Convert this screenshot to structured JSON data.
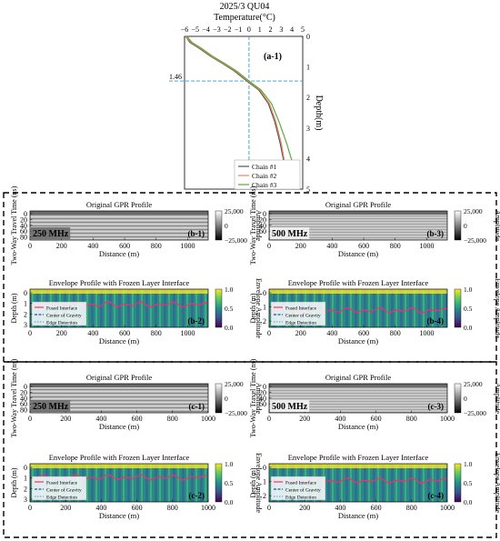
{
  "chart_data": [
    {
      "id": "a-1",
      "type": "line",
      "title": "2025/3 QU04",
      "xlabel": "Temperature(°C)",
      "ylabel": "Depth(m)",
      "xlim": [
        -6,
        5
      ],
      "ylim": [
        0,
        5
      ],
      "xticks": [
        "−6",
        "−5",
        "−4",
        "−3",
        "−2",
        "−1",
        "0",
        "1",
        "2",
        "3",
        "4",
        "5"
      ],
      "yticks": [
        "0",
        "1",
        "2",
        "3",
        "4",
        "5"
      ],
      "panel_label": "(a-1)",
      "marker_label": "1.46",
      "marker_depth": 1.46,
      "marker_temp": 0,
      "legend_position": "bottom-right",
      "series": [
        {
          "name": "Chain #1",
          "color": "#555555",
          "points": [
            [
              -5.9,
              0
            ],
            [
              -5.5,
              0.2
            ],
            [
              -4.6,
              0.4
            ],
            [
              -3.6,
              0.65
            ],
            [
              -2.4,
              0.9
            ],
            [
              -1.3,
              1.15
            ],
            [
              -0.2,
              1.46
            ],
            [
              0.9,
              1.75
            ],
            [
              1.8,
              2.2
            ],
            [
              2.4,
              2.8
            ],
            [
              2.9,
              3.5
            ],
            [
              3.3,
              4.2
            ],
            [
              3.6,
              5
            ]
          ]
        },
        {
          "name": "Chain #2",
          "color": "#e9875a",
          "points": [
            [
              -5.9,
              0
            ],
            [
              -5.4,
              0.2
            ],
            [
              -4.5,
              0.4
            ],
            [
              -3.5,
              0.65
            ],
            [
              -2.3,
              0.9
            ],
            [
              -1.2,
              1.15
            ],
            [
              -0.1,
              1.46
            ],
            [
              1.0,
              1.75
            ],
            [
              1.9,
              2.2
            ],
            [
              2.5,
              2.8
            ],
            [
              3.0,
              3.5
            ],
            [
              3.4,
              4.3
            ],
            [
              3.8,
              5
            ]
          ]
        },
        {
          "name": "Chain #3",
          "color": "#5aaa3c",
          "points": [
            [
              -5.8,
              0
            ],
            [
              -5.3,
              0.2
            ],
            [
              -4.4,
              0.4
            ],
            [
              -3.4,
              0.65
            ],
            [
              -2.2,
              0.9
            ],
            [
              -1.1,
              1.15
            ],
            [
              0.0,
              1.46
            ],
            [
              1.1,
              1.75
            ],
            [
              2.1,
              2.2
            ],
            [
              2.8,
              2.8
            ],
            [
              3.5,
              3.5
            ],
            [
              4.1,
              4.2
            ],
            [
              4.5,
              5
            ]
          ]
        }
      ]
    },
    {
      "id": "b-1",
      "type": "heatmap",
      "title": "Original GPR Profile",
      "xlabel": "Distance (m)",
      "ylabel": "Two-Way Travel Time (ns)",
      "xticks": [
        "0",
        "200",
        "400",
        "600",
        "800",
        "1000"
      ],
      "xlim": [
        0,
        1130
      ],
      "yticks": [
        "0",
        "20",
        "40",
        "60",
        "80"
      ],
      "colorbar_label": "Amplitude",
      "colorbar_ticks": [
        "25,000",
        "0",
        "−25,000"
      ],
      "frequency": "250 MHz",
      "panel_label": "(b-1)"
    },
    {
      "id": "b-3",
      "type": "heatmap",
      "title": "Original GPR Profile",
      "xlabel": "Distance (m)",
      "ylabel": "Two-Way Travel Time (ns)",
      "xticks": [
        "0",
        "200",
        "400",
        "600",
        "800",
        "1000"
      ],
      "xlim": [
        0,
        1130
      ],
      "yticks": [
        "0",
        "20",
        "40",
        "60"
      ],
      "colorbar_label": "Amplitude",
      "colorbar_ticks": [
        "25,000",
        "0",
        "−25,000"
      ],
      "frequency": "500 MHz",
      "panel_label": "(b-3)"
    },
    {
      "id": "b-2",
      "type": "heatmap",
      "title": "Envelope Profile with Frozen Layer Interface",
      "xlabel": "Distance (m)",
      "ylabel": "Depth (m)",
      "xticks": [
        "0",
        "200",
        "400",
        "600",
        "800",
        "1000"
      ],
      "xlim": [
        0,
        1130
      ],
      "yticks": [
        "0",
        "1",
        "2",
        "3"
      ],
      "colorbar_label": "Envelope Amplitude",
      "colorbar_ticks": [
        "1.0",
        "0.5",
        "0.0"
      ],
      "panel_label": "(b-2)",
      "legend": [
        "Fused Interface",
        "Center of Gravity",
        "Edge Detection"
      ],
      "interface_depth_m": 1.45
    },
    {
      "id": "b-4",
      "type": "heatmap",
      "title": "Envelope Profile with Frozen Layer Interface",
      "xlabel": "Distance (m)",
      "ylabel": "Depth (m)",
      "xticks": [
        "0",
        "200",
        "400",
        "600",
        "800",
        "1000"
      ],
      "xlim": [
        0,
        1130
      ],
      "yticks": [
        "0",
        "1",
        "2"
      ],
      "colorbar_label": "Envelope Amplitude",
      "colorbar_ticks": [
        "1.0",
        "0.5",
        "0.0"
      ],
      "panel_label": "(b-4)",
      "legend": [
        "Fused Interface",
        "Center of Gravity",
        "Edge Detection"
      ],
      "interface_depth_m": 1.5
    },
    {
      "id": "c-1",
      "type": "heatmap",
      "title": "Original GPR Profile",
      "xlabel": "Distance (m)",
      "ylabel": "Two-Way Travel Time (ns)",
      "xticks": [
        "0",
        "200",
        "400",
        "600",
        "800",
        "1000"
      ],
      "xlim": [
        0,
        1000
      ],
      "yticks": [
        "0",
        "20",
        "40",
        "60",
        "80"
      ],
      "colorbar_label": "Amplitude",
      "colorbar_ticks": [
        "25,000",
        "0",
        "−25,000"
      ],
      "frequency": "250 MHz",
      "panel_label": "(c-1)"
    },
    {
      "id": "c-3",
      "type": "heatmap",
      "title": "Original GPR Profile",
      "xlabel": "Distance (m)",
      "ylabel": "Two-Way Travel Time (ns)",
      "xticks": [
        "0",
        "200",
        "400",
        "600",
        "800",
        "1000"
      ],
      "xlim": [
        0,
        1000
      ],
      "yticks": [
        "0",
        "20",
        "40",
        "60"
      ],
      "colorbar_label": "Amplitude",
      "colorbar_ticks": [
        "25,000",
        "0",
        "−25,000"
      ],
      "frequency": "500 MHz",
      "panel_label": "(c-3)"
    },
    {
      "id": "c-2",
      "type": "heatmap",
      "title": "Envelope Profile with Frozen Layer Interface",
      "xlabel": "Distance (m)",
      "ylabel": "Depth (m)",
      "xticks": [
        "0",
        "200",
        "400",
        "600",
        "800",
        "1000"
      ],
      "xlim": [
        0,
        1000
      ],
      "yticks": [
        "0",
        "1",
        "2",
        "3"
      ],
      "colorbar_label": "Envelope Amplitude",
      "colorbar_ticks": [
        "1.0",
        "0.5",
        "0.0"
      ],
      "panel_label": "(c-2)",
      "legend": [
        "Fused Interface",
        "Center of Gravity",
        "Edge Detection"
      ],
      "interface_depth_m": 1.3
    },
    {
      "id": "c-4",
      "type": "heatmap",
      "title": "Envelope Profile with Frozen Layer Interface",
      "xlabel": "Distance (m)",
      "ylabel": "Depth (m)",
      "xticks": [
        "0",
        "200",
        "400",
        "600",
        "800",
        "1000"
      ],
      "xlim": [
        0,
        1000
      ],
      "yticks": [
        "0",
        "1",
        "2"
      ],
      "colorbar_label": "Envelope Amplitude",
      "colorbar_ticks": [
        "1.0",
        "0.5",
        "0.0"
      ],
      "panel_label": "(c-4)",
      "legend": [
        "Fused Interface",
        "Center of Gravity",
        "Edge Detection"
      ],
      "interface_depth_m": 1.2
    }
  ]
}
